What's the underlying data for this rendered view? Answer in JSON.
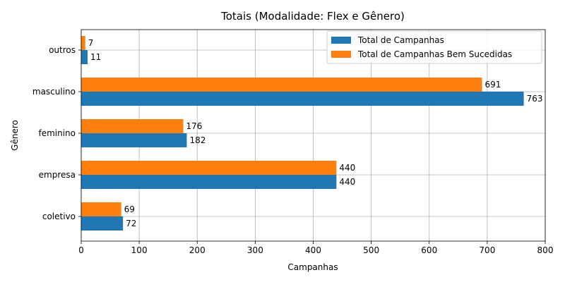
{
  "chart_data": {
    "type": "bar",
    "orientation": "horizontal",
    "title": "Totais (Modalidade: Flex e Gênero)",
    "xlabel": "Campanhas",
    "ylabel": "Gênero",
    "xlim": [
      0,
      800
    ],
    "xticks": [
      "0",
      "100",
      "200",
      "300",
      "400",
      "500",
      "600",
      "700",
      "800"
    ],
    "categories": [
      "coletivo",
      "empresa",
      "feminino",
      "masculino",
      "outros"
    ],
    "series": [
      {
        "name": "Total de Campanhas",
        "color": "#1f77b4",
        "values": [
          72,
          440,
          182,
          763,
          11
        ]
      },
      {
        "name": "Total de Campanhas Bem Sucedidas",
        "color": "#ff7f0e",
        "values": [
          69,
          440,
          176,
          691,
          7
        ]
      }
    ],
    "grid": true,
    "legend_position": "top-right"
  }
}
